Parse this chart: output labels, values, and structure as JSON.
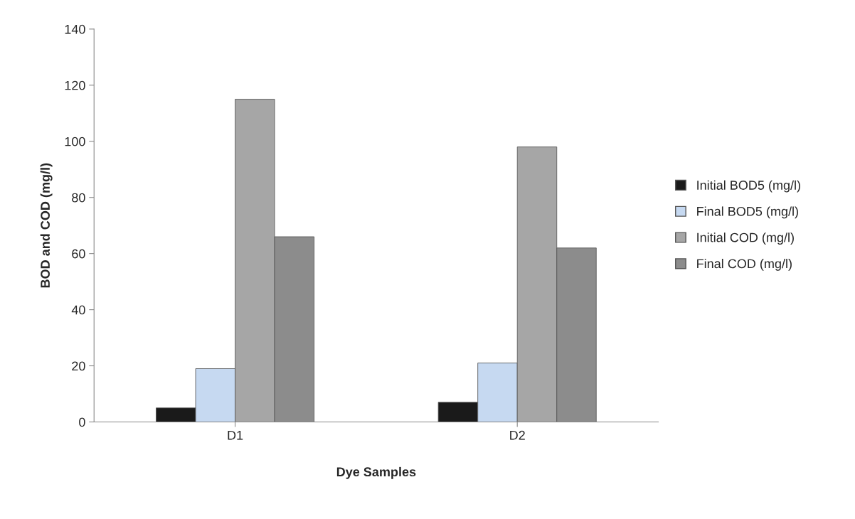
{
  "chart_data": {
    "type": "bar",
    "xlabel": "Dye Samples",
    "ylabel": "BOD and COD (mg/l)",
    "categories": [
      "D1",
      "D2"
    ],
    "series": [
      {
        "name": "Initial BOD5 (mg/l)",
        "color": "#1a1a1a",
        "values": [
          5,
          7
        ]
      },
      {
        "name": "Final BOD5 (mg/l)",
        "color": "#c6d9f1",
        "values": [
          19,
          21
        ]
      },
      {
        "name": "Initial COD (mg/l)",
        "color": "#a6a6a6",
        "values": [
          115,
          98
        ]
      },
      {
        "name": "Final COD (mg/l)",
        "color": "#8c8c8c",
        "values": [
          66,
          62
        ]
      }
    ],
    "ylim": [
      0,
      140
    ],
    "yticks": [
      0,
      20,
      40,
      60,
      80,
      100,
      120,
      140
    ],
    "grid": false,
    "legend": "right"
  }
}
